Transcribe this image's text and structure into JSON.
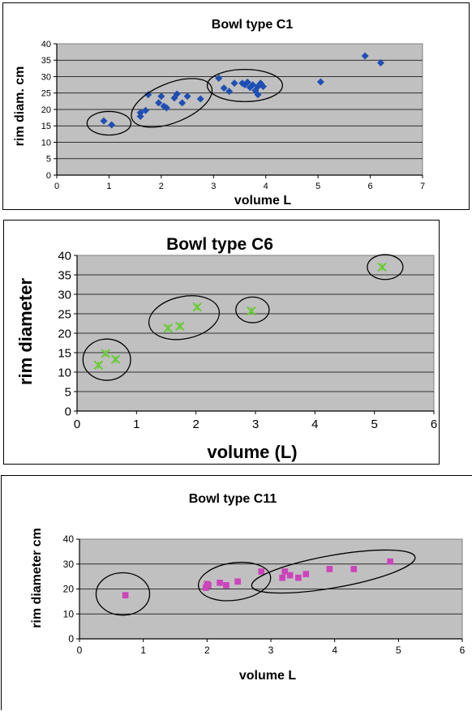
{
  "chart_data": [
    {
      "id": "c1",
      "type": "scatter",
      "title": "Bowl type C1",
      "xlabel": "volume L",
      "ylabel": "rim diam. cm",
      "xlim": [
        0,
        7
      ],
      "ylim": [
        0,
        40
      ],
      "xticks": [
        0,
        1,
        2,
        3,
        4,
        5,
        6,
        7
      ],
      "yticks": [
        0,
        5,
        10,
        15,
        20,
        25,
        30,
        35,
        40
      ],
      "grid": true,
      "plot_background": "#c0c0c0",
      "marker": "diamond",
      "marker_color": "#1f4fb4",
      "points": [
        [
          0.9,
          16.5
        ],
        [
          1.05,
          15.3
        ],
        [
          1.6,
          17.9
        ],
        [
          1.6,
          19.0
        ],
        [
          1.7,
          19.7
        ],
        [
          1.75,
          24.5
        ],
        [
          1.95,
          22.0
        ],
        [
          2.0,
          24.0
        ],
        [
          2.05,
          21.0
        ],
        [
          2.1,
          20.5
        ],
        [
          2.25,
          23.5
        ],
        [
          2.3,
          24.7
        ],
        [
          2.4,
          22.0
        ],
        [
          2.5,
          24.0
        ],
        [
          2.75,
          23.2
        ],
        [
          3.1,
          29.5
        ],
        [
          3.2,
          26.5
        ],
        [
          3.3,
          25.5
        ],
        [
          3.4,
          28.0
        ],
        [
          3.55,
          28.0
        ],
        [
          3.6,
          27.5
        ],
        [
          3.65,
          28.3
        ],
        [
          3.7,
          26.7
        ],
        [
          3.75,
          27.5
        ],
        [
          3.8,
          25.8
        ],
        [
          3.85,
          24.5
        ],
        [
          3.85,
          27.0
        ],
        [
          3.9,
          28.0
        ],
        [
          3.95,
          27.0
        ],
        [
          5.05,
          28.4
        ],
        [
          5.9,
          36.3
        ],
        [
          6.2,
          34.2
        ]
      ],
      "clusters": [
        {
          "cx": 1.0,
          "cy": 15.8,
          "rx": 0.42,
          "ry": 3.6,
          "angle": 0
        },
        {
          "cx": 2.2,
          "cy": 22.0,
          "rx": 0.82,
          "ry": 6.0,
          "angle": -22
        },
        {
          "cx": 3.6,
          "cy": 27.3,
          "rx": 0.72,
          "ry": 4.9,
          "angle": 0
        }
      ]
    },
    {
      "id": "c6",
      "type": "scatter",
      "title": "Bowl type C6",
      "xlabel": "volume (L)",
      "ylabel": "rim diameter",
      "xlim": [
        0,
        6
      ],
      "ylim": [
        0,
        40
      ],
      "xticks": [
        0,
        1,
        2,
        3,
        4,
        5,
        6
      ],
      "yticks": [
        0,
        5,
        10,
        15,
        20,
        25,
        30,
        35,
        40
      ],
      "grid": true,
      "plot_background": "#c0c0c0",
      "marker": "x",
      "marker_color": "#66cc33",
      "points": [
        [
          0.36,
          11.8
        ],
        [
          0.48,
          14.8
        ],
        [
          0.65,
          13.3
        ],
        [
          1.53,
          21.3
        ],
        [
          1.73,
          21.8
        ],
        [
          2.02,
          26.7
        ],
        [
          2.93,
          25.7
        ],
        [
          5.13,
          37.0
        ]
      ],
      "clusters": [
        {
          "cx": 0.5,
          "cy": 13.2,
          "rx": 0.4,
          "ry": 5.3,
          "angle": 0
        },
        {
          "cx": 1.8,
          "cy": 24.0,
          "rx": 0.6,
          "ry": 5.4,
          "angle": -12
        },
        {
          "cx": 2.95,
          "cy": 26.0,
          "rx": 0.28,
          "ry": 3.3,
          "angle": 0
        },
        {
          "cx": 5.18,
          "cy": 37.0,
          "rx": 0.3,
          "ry": 3.2,
          "angle": 0
        }
      ]
    },
    {
      "id": "c11",
      "type": "scatter",
      "title": "Bowl type C11",
      "xlabel": "volume L",
      "ylabel": "rim diameter cm",
      "xlim": [
        0,
        6
      ],
      "ylim": [
        0,
        40
      ],
      "xticks": [
        0,
        1,
        2,
        3,
        4,
        5,
        6
      ],
      "yticks": [
        0,
        10,
        20,
        30,
        40
      ],
      "grid": true,
      "plot_background": "#c0c0c0",
      "marker": "square",
      "marker_color": "#cc44bb",
      "points": [
        [
          0.72,
          17.5
        ],
        [
          1.98,
          20.5
        ],
        [
          2.0,
          22.0
        ],
        [
          2.02,
          21.5
        ],
        [
          2.2,
          22.5
        ],
        [
          2.3,
          21.5
        ],
        [
          2.48,
          23.0
        ],
        [
          2.85,
          27.0
        ],
        [
          3.18,
          24.5
        ],
        [
          3.22,
          27.0
        ],
        [
          3.3,
          25.5
        ],
        [
          3.43,
          24.5
        ],
        [
          3.55,
          26.0
        ],
        [
          3.92,
          28.0
        ],
        [
          4.3,
          28.0
        ],
        [
          4.87,
          31.0
        ]
      ],
      "clusters": [
        {
          "cx": 0.68,
          "cy": 18.0,
          "rx": 0.42,
          "ry": 8.5,
          "angle": 0
        },
        {
          "cx": 2.43,
          "cy": 23.0,
          "rx": 0.57,
          "ry": 7.5,
          "angle": -8
        },
        {
          "cx": 3.98,
          "cy": 27.0,
          "rx": 1.3,
          "ry": 6.5,
          "angle": -10
        }
      ]
    }
  ]
}
